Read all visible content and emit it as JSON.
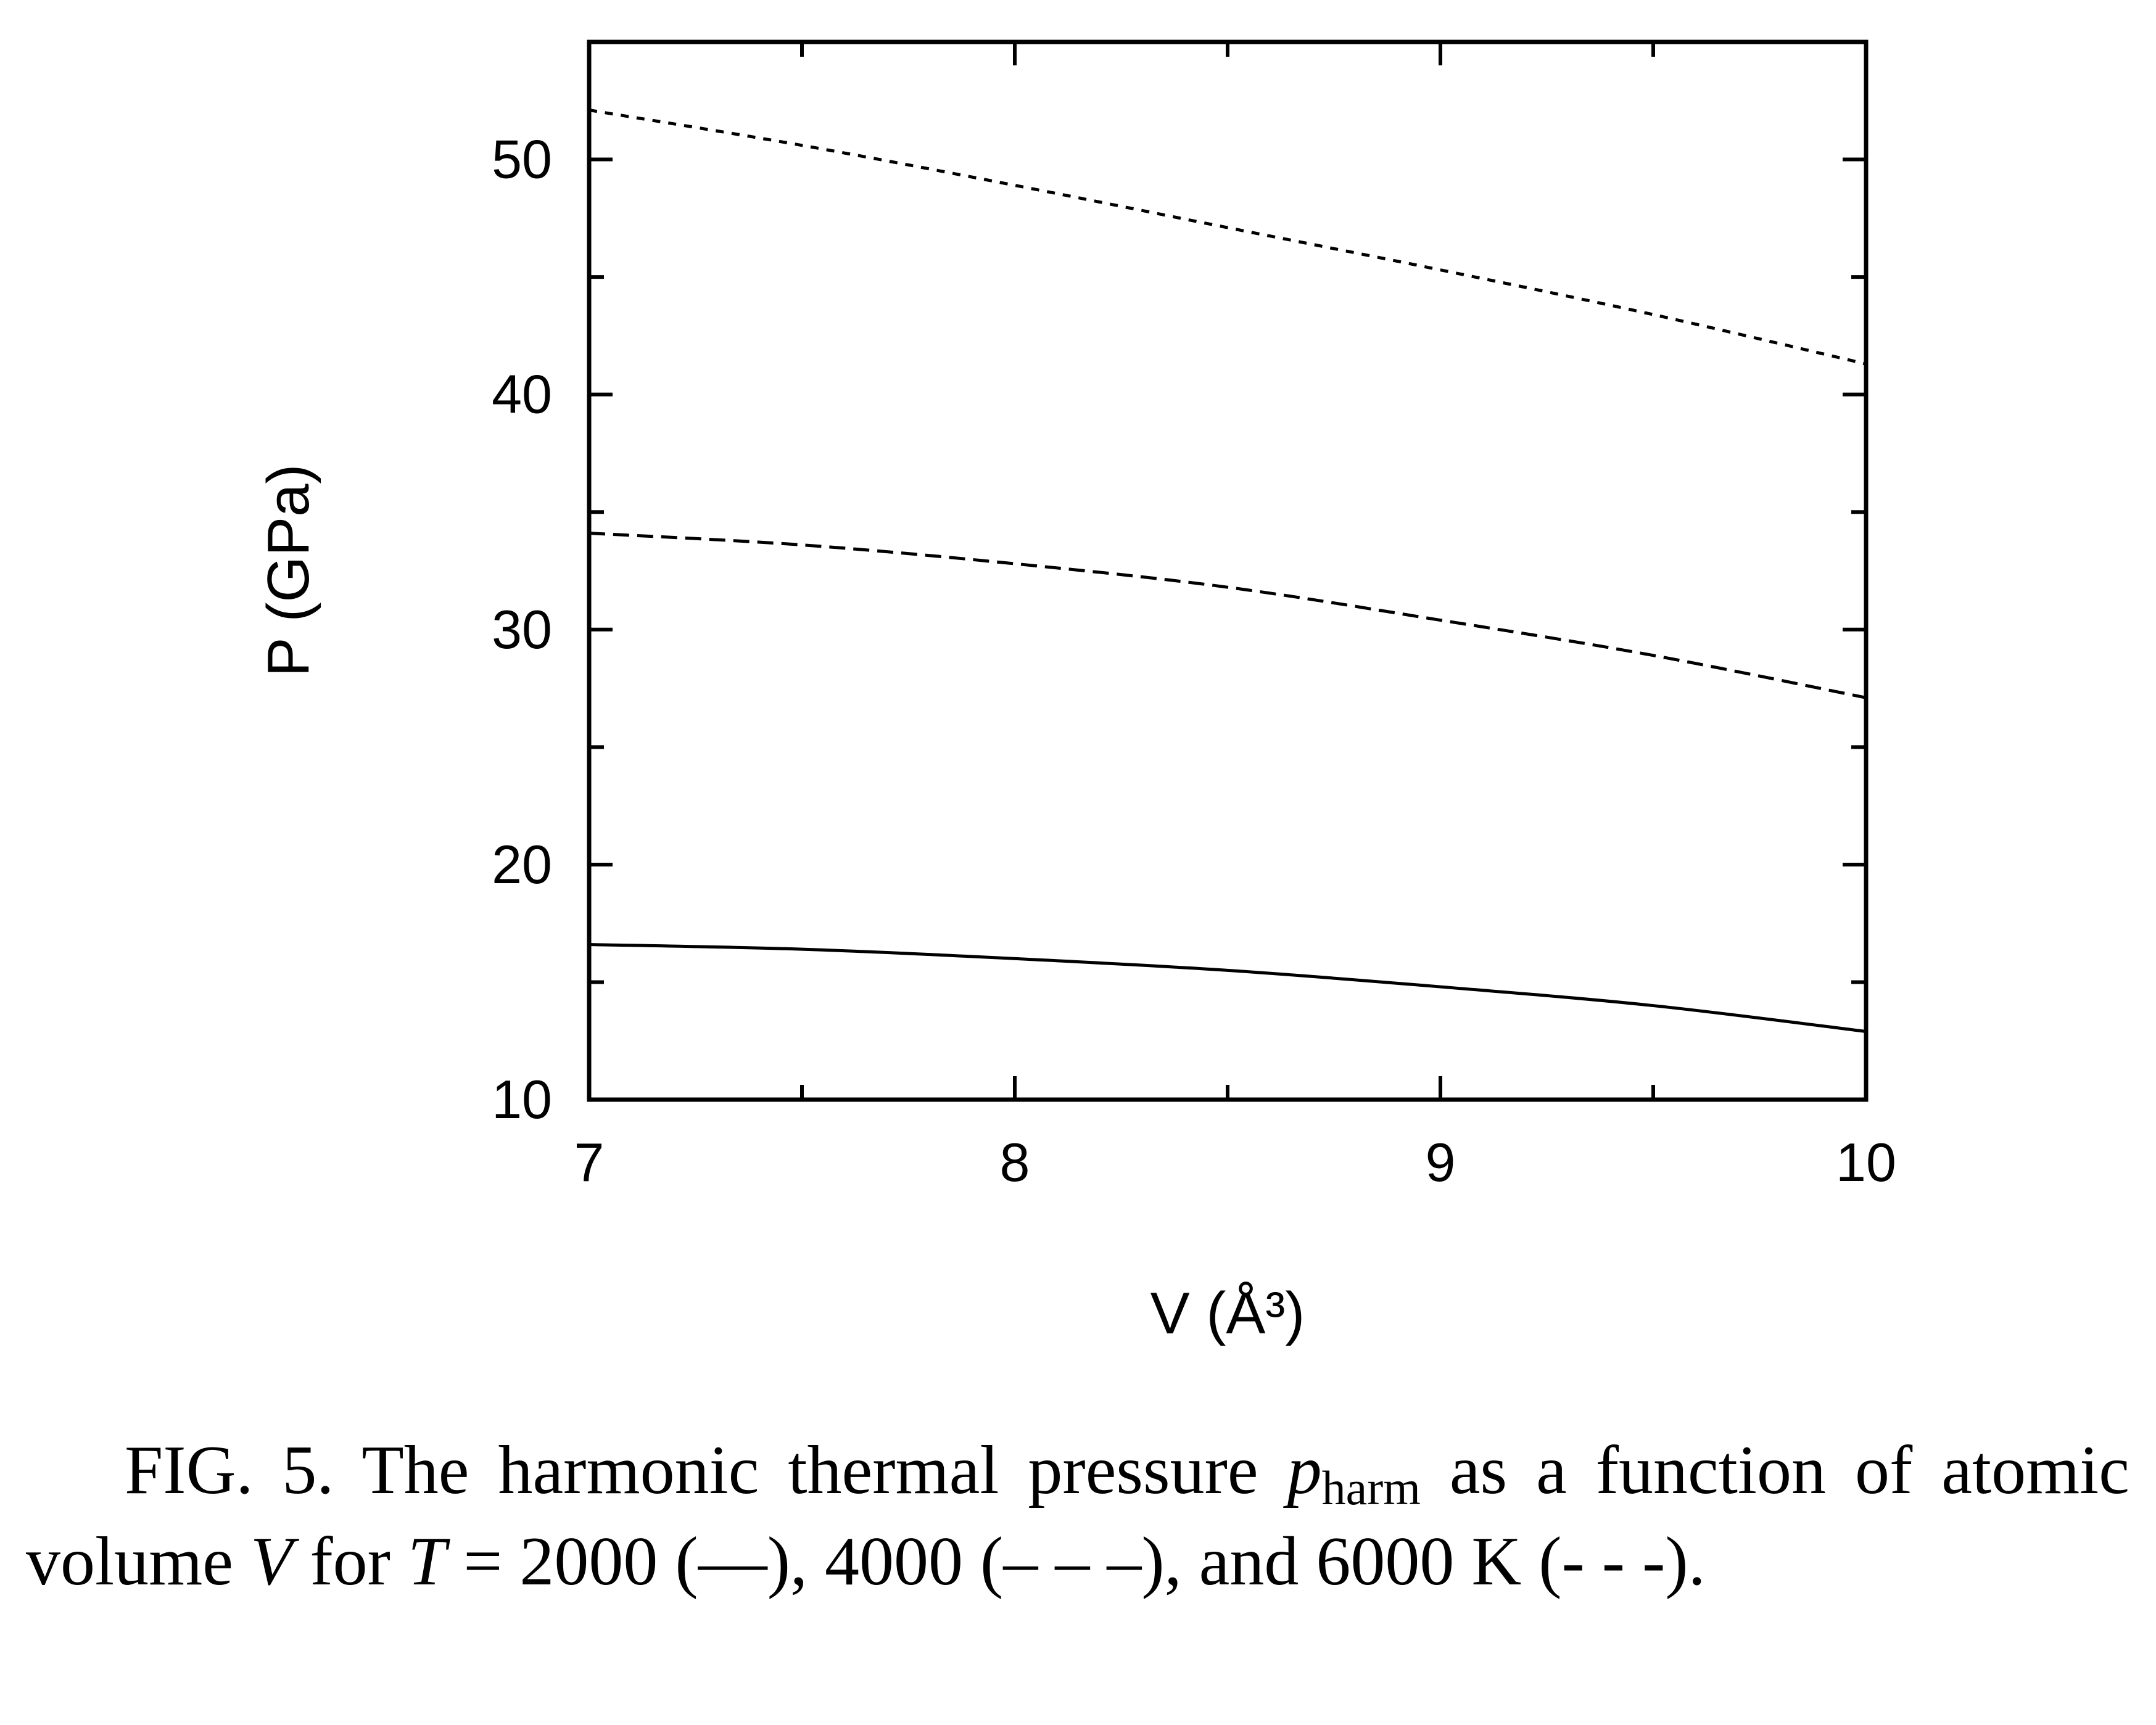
{
  "chart_data": {
    "type": "line",
    "xlabel": "V (Å³)",
    "ylabel": "P (GPa)",
    "xlim": [
      7,
      10
    ],
    "ylim": [
      10,
      55
    ],
    "xticks": [
      "7",
      "8",
      "9",
      "10"
    ],
    "yticks": [
      "10",
      "20",
      "30",
      "40",
      "50"
    ],
    "grid": false,
    "series": [
      {
        "name": "2000 K",
        "style": "solid",
        "x": [
          7.0,
          7.5,
          8.0,
          8.5,
          9.0,
          9.5,
          10.0
        ],
        "y": [
          16.6,
          16.4,
          16.0,
          15.5,
          14.8,
          14.0,
          12.9
        ]
      },
      {
        "name": "4000 K",
        "style": "dashed",
        "x": [
          7.0,
          7.5,
          8.0,
          8.5,
          9.0,
          9.5,
          10.0
        ],
        "y": [
          34.1,
          33.6,
          32.8,
          31.8,
          30.4,
          28.9,
          27.1
        ]
      },
      {
        "name": "6000 K",
        "style": "dotted",
        "x": [
          7.0,
          7.5,
          8.0,
          8.5,
          9.0,
          9.5,
          10.0
        ],
        "y": [
          52.1,
          50.6,
          48.9,
          47.1,
          45.3,
          43.4,
          41.3
        ]
      }
    ]
  },
  "caption": {
    "label": "FIG. 5.",
    "text_1": " The harmonic thermal pressure ",
    "p_symbol": "p",
    "p_subscript": "harm",
    "text_2": " as a function of atomic volume ",
    "v_symbol": "V",
    "text_3": " for ",
    "t_symbol": "T",
    "text_4": " = 2000 (—), 4000 (– – –), and 6000 K (- - -)."
  }
}
